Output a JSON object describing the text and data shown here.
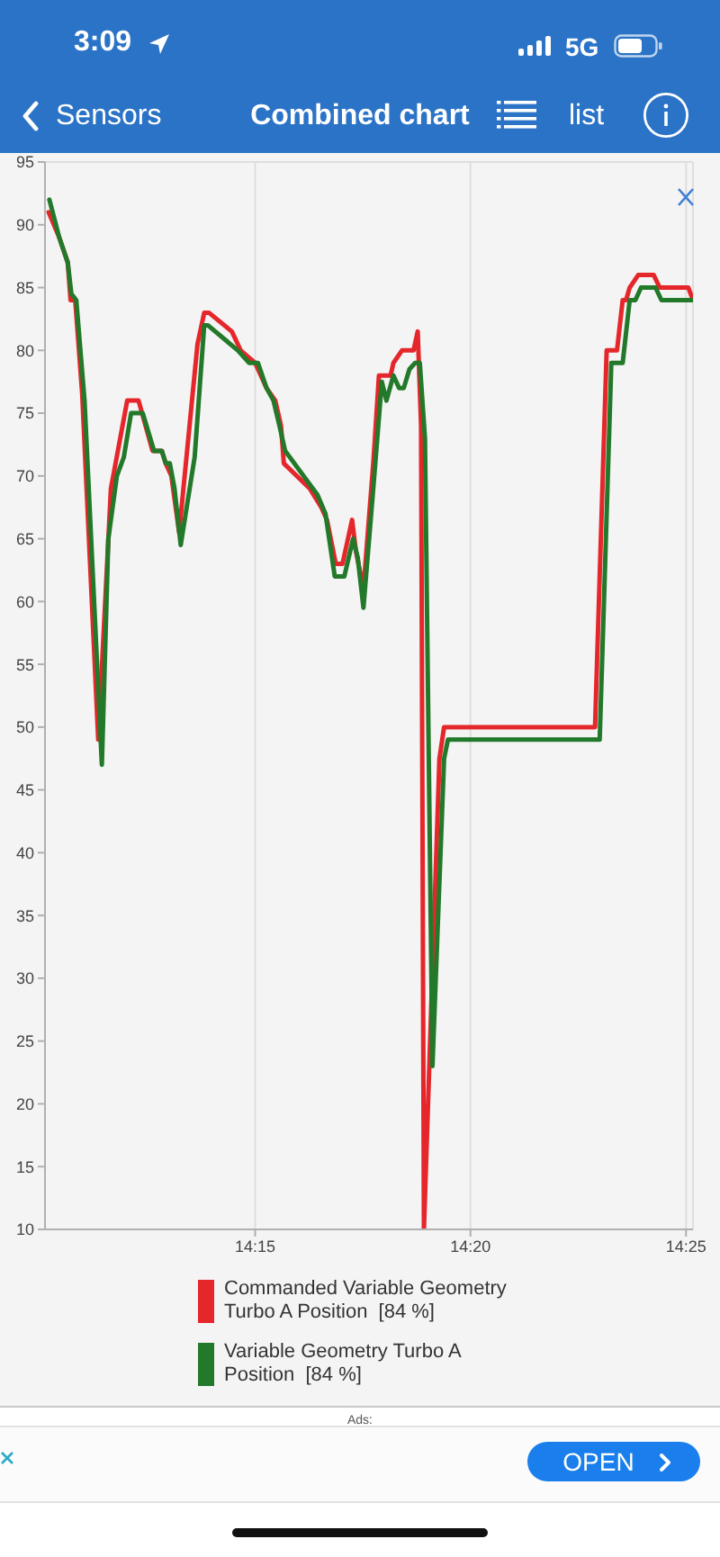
{
  "chart_data": {
    "type": "line",
    "title": "Combined chart",
    "annotations": [
      "3:09",
      "5G",
      "Sensors",
      "list",
      "Ads:",
      "OPEN"
    ],
    "xlim": [
      14.1687,
      14.4194
    ],
    "xticks": [
      {
        "value": 14.25,
        "label": "14:15"
      },
      {
        "value": 14.3333,
        "label": "14:20"
      },
      {
        "value": 14.4167,
        "label": "14:25"
      }
    ],
    "ylim": [
      10,
      95
    ],
    "yticks": [
      10,
      15,
      20,
      25,
      30,
      35,
      40,
      45,
      50,
      55,
      60,
      65,
      70,
      75,
      80,
      85,
      90,
      95
    ],
    "grid": true,
    "legend": "bottom",
    "series": [
      {
        "name": "Commanded Variable Geometry Turbo A Position  [84 %]",
        "color": "#e5262a",
        "x": [
          14.1701,
          14.1742,
          14.1775,
          14.1786,
          14.1804,
          14.1831,
          14.1893,
          14.1942,
          14.1987,
          14.2005,
          14.2049,
          14.2103,
          14.2139,
          14.2154,
          14.2176,
          14.2206,
          14.2277,
          14.2303,
          14.2321,
          14.241,
          14.2444,
          14.25,
          14.2522,
          14.2544,
          14.2578,
          14.26,
          14.2611,
          14.2711,
          14.2756,
          14.2778,
          14.2812,
          14.2838,
          14.2875,
          14.289,
          14.2919,
          14.2957,
          14.2979,
          14.3024,
          14.3035,
          14.3068,
          14.3113,
          14.3129,
          14.3142,
          14.3153,
          14.3213,
          14.3231,
          14.3815,
          14.386,
          14.39,
          14.3922,
          14.3935,
          14.3949,
          14.3982,
          14.4042,
          14.4065,
          14.4176,
          14.4194
        ],
        "values": [
          91,
          89,
          87,
          84,
          84,
          76.5,
          49,
          69,
          74,
          76,
          76,
          72,
          72,
          71,
          70,
          65.5,
          80.5,
          83,
          83,
          81.5,
          80,
          79,
          78,
          77,
          76,
          74,
          71,
          69,
          67.5,
          66.5,
          63,
          63,
          66.5,
          64,
          61,
          71,
          78,
          78,
          79,
          80,
          80,
          81.5,
          74,
          10,
          47.5,
          50,
          50,
          80,
          80,
          84,
          84,
          85,
          86,
          86,
          85,
          85,
          84
        ]
      },
      {
        "name": "Variable Geometry Turbo A Position  [84 %]",
        "color": "#22792a",
        "x": [
          14.1704,
          14.1742,
          14.1775,
          14.1789,
          14.1808,
          14.184,
          14.1907,
          14.1932,
          14.1965,
          14.1992,
          14.202,
          14.2065,
          14.2109,
          14.2139,
          14.2154,
          14.217,
          14.2188,
          14.2212,
          14.2266,
          14.2303,
          14.2317,
          14.2433,
          14.2477,
          14.2511,
          14.2544,
          14.2571,
          14.2594,
          14.2616,
          14.2723,
          14.2741,
          14.2772,
          14.2808,
          14.2845,
          14.2879,
          14.2897,
          14.2919,
          14.2957,
          14.299,
          14.3008,
          14.3035,
          14.3057,
          14.3075,
          14.3097,
          14.3119,
          14.3137,
          14.3157,
          14.3186,
          14.3231,
          14.3246,
          14.3833,
          14.3878,
          14.3922,
          14.3949,
          14.3971,
          14.3993,
          14.4049,
          14.4072,
          14.4194
        ],
        "values": [
          92,
          89,
          87,
          84.5,
          84,
          76,
          47,
          65,
          70,
          71.5,
          75,
          75,
          72,
          72,
          71,
          71,
          69,
          64.5,
          71.5,
          82,
          82,
          80,
          79,
          79,
          77,
          76,
          74,
          72,
          69,
          68.5,
          67,
          62,
          62,
          65,
          63.5,
          59.5,
          69,
          77.5,
          76,
          78,
          77,
          77,
          78.5,
          79,
          79,
          73,
          23,
          47.5,
          49,
          49,
          79,
          79,
          84,
          84,
          85,
          85,
          84,
          84
        ]
      }
    ]
  }
}
